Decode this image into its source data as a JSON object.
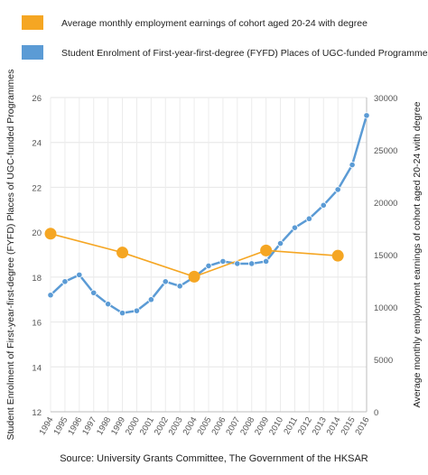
{
  "chart_data": {
    "type": "line",
    "legend": {
      "placement": "top",
      "entries": [
        {
          "label": "Average monthly employment earnings of cohort aged 20-24 with degree",
          "color": "#F5A623"
        },
        {
          "label": "Student Enrolment of First-year-first-degree (FYFD) Places of UGC-funded Programmes",
          "color": "#5B9BD5"
        }
      ]
    },
    "x_labels": [
      "1994",
      "1995",
      "1996",
      "1997",
      "1998",
      "1999",
      "2000",
      "2001",
      "2002",
      "2003",
      "2004",
      "2005",
      "2006",
      "2007",
      "2008",
      "2009",
      "2010",
      "2011",
      "2012",
      "2013",
      "2014",
      "2015",
      "2016"
    ],
    "y_left": {
      "label": "Student Enrolment of First-year-first-degree (FYFD) Places of UGC-funded Programmes",
      "range": [
        12,
        26
      ],
      "ticks": [
        "12",
        "14",
        "16",
        "18",
        "20",
        "22",
        "24",
        "26"
      ]
    },
    "y_right": {
      "label": "Average monthly employment earnings of cohort aged 20-24 with degree",
      "range": [
        0,
        30000
      ],
      "ticks": [
        "0",
        "5000",
        "10000",
        "15000",
        "20000",
        "25000",
        "30000"
      ]
    },
    "series": [
      {
        "name": "Student Enrolment of First-year-first-degree (FYFD) Places of UGC-funded Programmes",
        "axis": "left",
        "color": "#5B9BD5",
        "x": [
          "1994",
          "1995",
          "1996",
          "1997",
          "1998",
          "1999",
          "2000",
          "2001",
          "2002",
          "2003",
          "2004",
          "2005",
          "2006",
          "2007",
          "2008",
          "2009",
          "2010",
          "2011",
          "2012",
          "2013",
          "2014",
          "2015",
          "2016"
        ],
        "values": [
          17.2,
          17.8,
          18.1,
          17.3,
          16.8,
          16.4,
          16.5,
          17.0,
          17.8,
          17.6,
          18.0,
          18.5,
          18.7,
          18.6,
          18.6,
          18.7,
          19.5,
          20.2,
          20.6,
          21.2,
          21.9,
          23.0,
          25.2
        ]
      },
      {
        "name": "Average monthly employment earnings of cohort aged 20-24 with degree",
        "axis": "right",
        "color": "#F5A623",
        "x": [
          "1994",
          "1999",
          "2004",
          "2009",
          "2014"
        ],
        "values": [
          17000,
          15200,
          12900,
          15400,
          14900
        ]
      }
    ],
    "grid": true,
    "source": "Source: University Grants Committee, The Government of the HKSAR"
  }
}
